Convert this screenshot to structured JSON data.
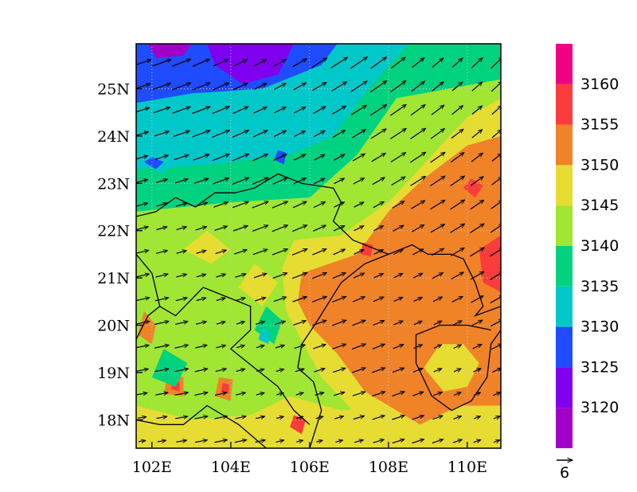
{
  "chart_data": {
    "type": "heatmap",
    "title": "",
    "xlabel": "",
    "ylabel": "",
    "xlim": [
      101.6,
      110.85
    ],
    "ylim": [
      17.4,
      25.95
    ],
    "x_ticks": [
      102,
      104,
      106,
      108,
      110
    ],
    "x_tick_labels": [
      "102E",
      "104E",
      "106E",
      "108E",
      "110E"
    ],
    "y_ticks": [
      18,
      19,
      20,
      21,
      22,
      23,
      24,
      25
    ],
    "y_tick_labels": [
      "18N",
      "19N",
      "20N",
      "21N",
      "22N",
      "23N",
      "24N",
      "25N"
    ],
    "grid": true,
    "overlay": "wind vectors",
    "colorbar": {
      "levels": [
        3120,
        3125,
        3130,
        3135,
        3140,
        3145,
        3150,
        3155,
        3160
      ],
      "labels": [
        "3120",
        "3125",
        "3130",
        "3135",
        "3140",
        "3145",
        "3150",
        "3155",
        "3160"
      ],
      "colors": [
        "#a100c8",
        "#7f00ee",
        "#1f4cff",
        "#00c8c8",
        "#00d27f",
        "#a0e632",
        "#e6dc32",
        "#f08228",
        "#fa3c3c",
        "#f00082"
      ]
    },
    "field_regions": [
      {
        "level_index": 5,
        "polygon": [
          [
            101.6,
            17.4
          ],
          [
            110.85,
            17.4
          ],
          [
            110.85,
            25.95
          ],
          [
            101.6,
            25.95
          ]
        ]
      },
      {
        "level_index": 4,
        "polygon": [
          [
            101.6,
            22.4
          ],
          [
            104.0,
            22.6
          ],
          [
            106.0,
            22.7
          ],
          [
            107.2,
            23.6
          ],
          [
            108.2,
            24.8
          ],
          [
            110.85,
            25.2
          ],
          [
            110.85,
            25.95
          ],
          [
            101.6,
            25.95
          ]
        ]
      },
      {
        "level_index": 3,
        "polygon": [
          [
            101.6,
            23.3
          ],
          [
            103.5,
            23.4
          ],
          [
            105.5,
            23.6
          ],
          [
            106.6,
            24.0
          ],
          [
            107.4,
            24.9
          ],
          [
            108.5,
            25.95
          ],
          [
            101.6,
            25.95
          ]
        ]
      },
      {
        "level_index": 2,
        "polygon": [
          [
            101.6,
            24.7
          ],
          [
            103.0,
            24.9
          ],
          [
            104.8,
            25.0
          ],
          [
            106.3,
            25.5
          ],
          [
            106.7,
            25.95
          ],
          [
            101.6,
            25.95
          ]
        ]
      },
      {
        "level_index": 1,
        "polygon": [
          [
            103.4,
            25.95
          ],
          [
            103.6,
            25.5
          ],
          [
            104.3,
            25.1
          ],
          [
            105.2,
            25.3
          ],
          [
            105.6,
            25.95
          ]
        ]
      },
      {
        "level_index": 0,
        "polygon": [
          [
            101.9,
            25.95
          ],
          [
            102.1,
            25.65
          ],
          [
            102.8,
            25.7
          ],
          [
            103.0,
            25.95
          ]
        ]
      },
      {
        "level_index": 3,
        "polygon": [
          [
            101.7,
            23.5
          ],
          [
            102.2,
            23.2
          ],
          [
            102.6,
            23.4
          ],
          [
            102.3,
            23.7
          ]
        ]
      },
      {
        "level_index": 2,
        "polygon": [
          [
            101.8,
            23.45
          ],
          [
            102.1,
            23.3
          ],
          [
            102.3,
            23.45
          ],
          [
            102.0,
            23.55
          ]
        ]
      },
      {
        "level_index": 2,
        "polygon": [
          [
            105.1,
            23.5
          ],
          [
            105.35,
            23.4
          ],
          [
            105.4,
            23.65
          ],
          [
            105.2,
            23.7
          ]
        ]
      },
      {
        "level_index": 6,
        "polygon": [
          [
            101.6,
            17.4
          ],
          [
            110.85,
            17.4
          ],
          [
            110.85,
            19.6
          ],
          [
            109.5,
            18.4
          ],
          [
            106.8,
            18.2
          ],
          [
            105.5,
            18.5
          ],
          [
            104.5,
            18.1
          ],
          [
            103.0,
            18.0
          ],
          [
            101.6,
            18.3
          ]
        ]
      },
      {
        "level_index": 6,
        "polygon": [
          [
            105.6,
            21.8
          ],
          [
            106.8,
            21.9
          ],
          [
            108.0,
            22.6
          ],
          [
            110.0,
            24.4
          ],
          [
            110.85,
            24.8
          ],
          [
            110.85,
            17.8
          ],
          [
            107.2,
            18.1
          ],
          [
            106.3,
            18.9
          ],
          [
            105.4,
            20.3
          ],
          [
            105.3,
            21.2
          ]
        ]
      },
      {
        "level_index": 7,
        "polygon": [
          [
            105.8,
            21.1
          ],
          [
            107.2,
            21.5
          ],
          [
            108.0,
            22.4
          ],
          [
            108.9,
            23.1
          ],
          [
            110.0,
            23.8
          ],
          [
            110.85,
            24.0
          ],
          [
            110.85,
            18.3
          ],
          [
            109.8,
            18.3
          ],
          [
            108.8,
            17.9
          ],
          [
            107.4,
            18.6
          ],
          [
            106.7,
            19.4
          ],
          [
            106.0,
            20.0
          ],
          [
            105.7,
            20.5
          ]
        ]
      },
      {
        "level_index": 6,
        "polygon": [
          [
            108.9,
            19.1
          ],
          [
            109.4,
            18.6
          ],
          [
            110.0,
            18.7
          ],
          [
            110.3,
            19.2
          ],
          [
            109.9,
            19.6
          ],
          [
            109.3,
            19.6
          ]
        ]
      },
      {
        "level_index": 8,
        "polygon": [
          [
            110.3,
            21.6
          ],
          [
            110.85,
            21.9
          ],
          [
            110.85,
            20.7
          ],
          [
            110.4,
            20.9
          ]
        ]
      },
      {
        "level_index": 8,
        "polygon": [
          [
            109.9,
            22.9
          ],
          [
            110.2,
            22.7
          ],
          [
            110.4,
            22.95
          ],
          [
            110.1,
            23.1
          ]
        ]
      },
      {
        "level_index": 8,
        "polygon": [
          [
            107.3,
            21.5
          ],
          [
            107.55,
            21.45
          ],
          [
            107.6,
            21.7
          ],
          [
            107.35,
            21.75
          ]
        ]
      },
      {
        "level_index": 8,
        "polygon": [
          [
            105.5,
            17.85
          ],
          [
            105.8,
            17.7
          ],
          [
            105.9,
            18.0
          ],
          [
            105.6,
            18.1
          ]
        ]
      },
      {
        "level_index": 7,
        "polygon": [
          [
            101.65,
            19.8
          ],
          [
            102.0,
            19.6
          ],
          [
            102.1,
            20.0
          ],
          [
            101.8,
            20.3
          ]
        ]
      },
      {
        "level_index": 7,
        "polygon": [
          [
            102.3,
            18.55
          ],
          [
            102.8,
            18.5
          ],
          [
            102.8,
            18.9
          ],
          [
            102.4,
            18.95
          ]
        ]
      },
      {
        "level_index": 7,
        "polygon": [
          [
            103.6,
            18.5
          ],
          [
            104.0,
            18.4
          ],
          [
            104.05,
            18.85
          ],
          [
            103.7,
            18.9
          ]
        ]
      },
      {
        "level_index": 8,
        "polygon": [
          [
            102.5,
            18.65
          ],
          [
            102.7,
            18.6
          ],
          [
            102.7,
            18.8
          ],
          [
            102.5,
            18.8
          ]
        ]
      },
      {
        "level_index": 8,
        "polygon": [
          [
            103.75,
            18.6
          ],
          [
            103.95,
            18.55
          ],
          [
            103.95,
            18.75
          ],
          [
            103.8,
            18.78
          ]
        ]
      },
      {
        "level_index": 6,
        "polygon": [
          [
            102.8,
            21.6
          ],
          [
            103.5,
            21.3
          ],
          [
            104.0,
            21.6
          ],
          [
            103.4,
            22.0
          ]
        ]
      },
      {
        "level_index": 6,
        "polygon": [
          [
            104.2,
            20.8
          ],
          [
            104.8,
            20.4
          ],
          [
            105.2,
            20.9
          ],
          [
            104.6,
            21.3
          ]
        ]
      },
      {
        "level_index": 4,
        "polygon": [
          [
            102.0,
            18.9
          ],
          [
            102.6,
            18.7
          ],
          [
            102.9,
            19.2
          ],
          [
            102.3,
            19.5
          ]
        ]
      },
      {
        "level_index": 4,
        "polygon": [
          [
            104.6,
            19.9
          ],
          [
            105.1,
            19.6
          ],
          [
            105.3,
            20.1
          ],
          [
            104.9,
            20.4
          ]
        ]
      },
      {
        "level_index": 3,
        "polygon": [
          [
            104.7,
            19.7
          ],
          [
            104.95,
            19.6
          ],
          [
            105.0,
            19.85
          ],
          [
            104.8,
            19.95
          ]
        ]
      }
    ]
  },
  "figure": {
    "vector_reference_label": "6"
  }
}
